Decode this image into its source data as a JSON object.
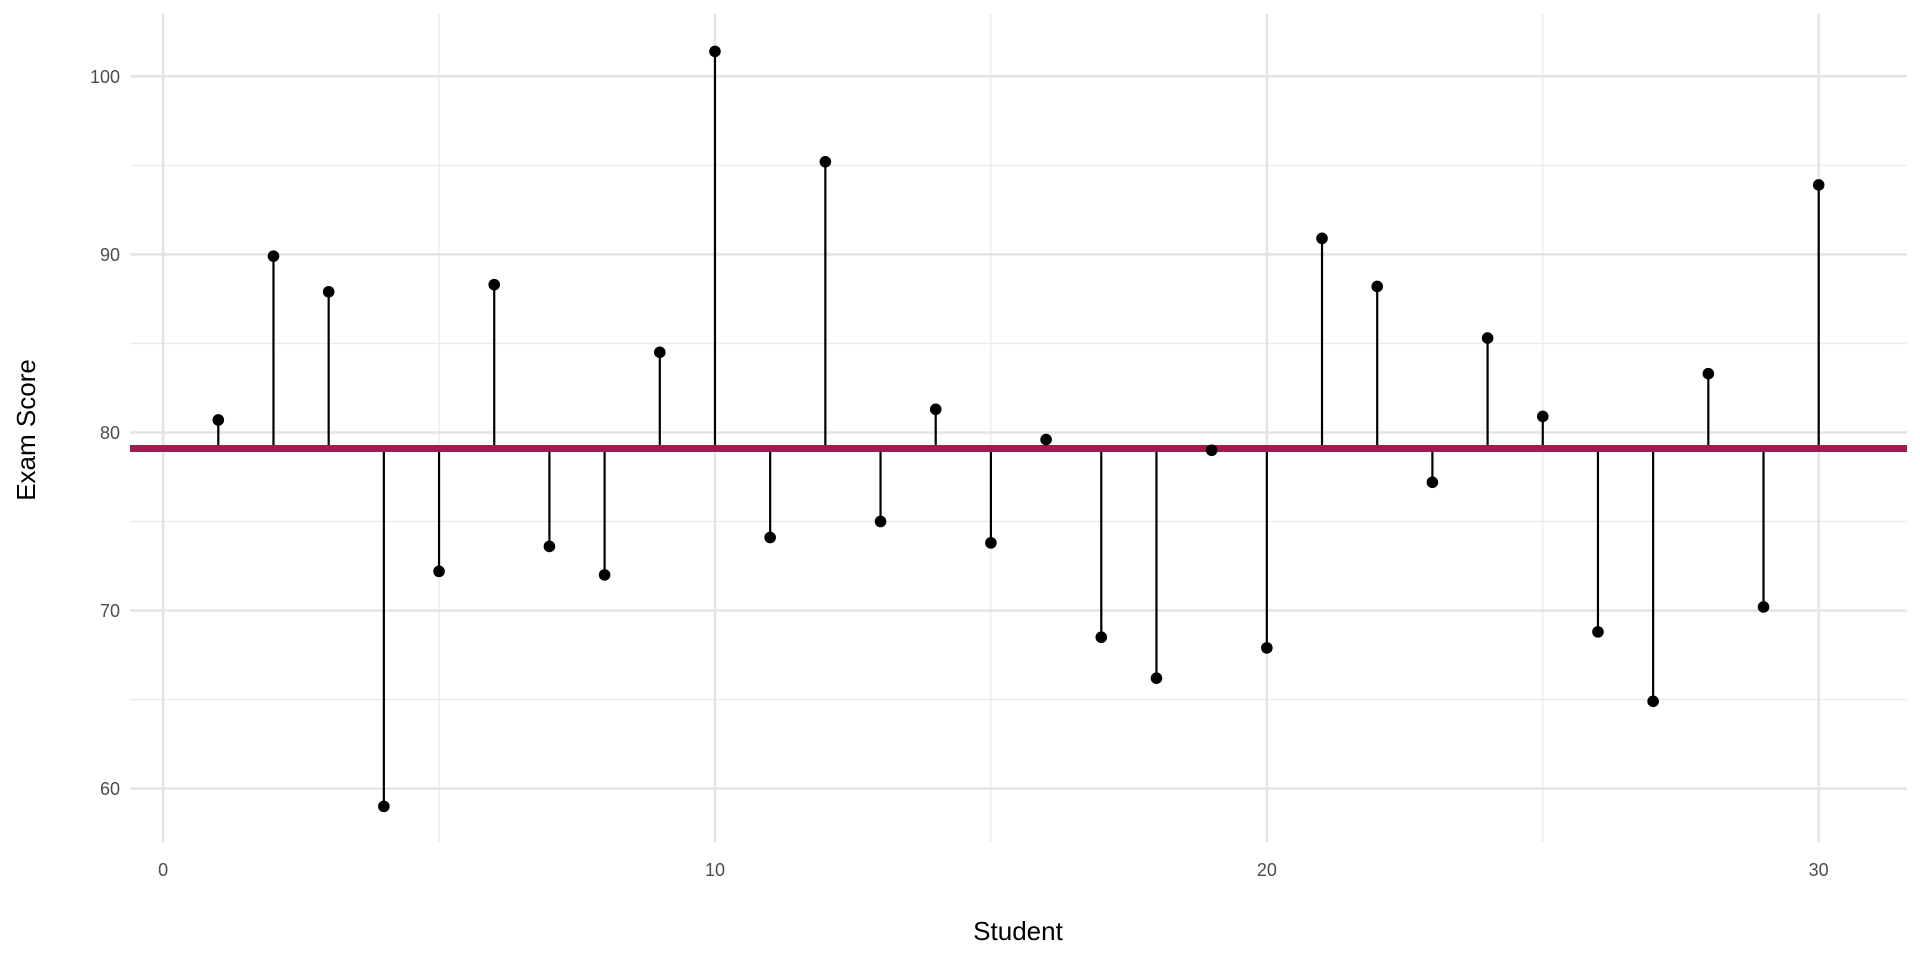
{
  "chart_data": {
    "type": "lollipop",
    "xlabel": "Student",
    "ylabel": "Exam Score",
    "xlim": [
      -0.6,
      31.6
    ],
    "ylim": [
      57,
      103.5
    ],
    "x_ticks": [
      0,
      10,
      20,
      30
    ],
    "y_ticks": [
      60,
      70,
      80,
      90,
      100
    ],
    "x_minor_ticks": [
      5,
      15,
      25
    ],
    "y_minor_ticks": [
      65,
      75,
      85,
      95
    ],
    "grid": true,
    "baseline": 79.1,
    "baseline_color": "#a01c4f",
    "point_color": "#000000",
    "x": [
      1,
      2,
      3,
      4,
      5,
      6,
      7,
      8,
      9,
      10,
      11,
      12,
      13,
      14,
      15,
      16,
      17,
      18,
      19,
      20,
      21,
      22,
      23,
      24,
      25,
      26,
      27,
      28,
      29,
      30
    ],
    "values": [
      80.7,
      89.9,
      87.9,
      59.0,
      72.2,
      88.3,
      73.6,
      72.0,
      84.5,
      101.4,
      74.1,
      95.2,
      75.0,
      81.3,
      73.8,
      79.6,
      68.5,
      66.2,
      79.0,
      67.9,
      90.9,
      88.2,
      77.2,
      85.3,
      80.9,
      68.8,
      64.9,
      83.3,
      70.2,
      93.9
    ]
  }
}
